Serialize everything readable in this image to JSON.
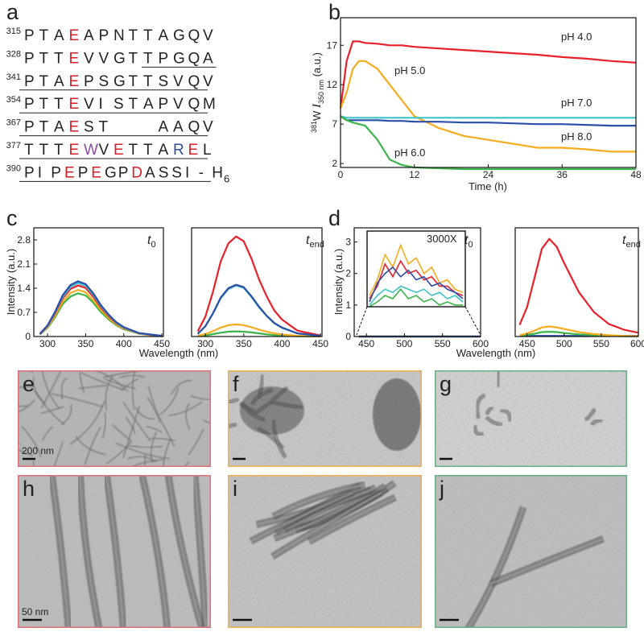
{
  "panel_labels": [
    "a",
    "b",
    "c",
    "d"
  ],
  "sequence": [
    {
      "number": "315",
      "segments": [
        {
          "text": "PTA"
        },
        {
          "text": "E",
          "color": "#d42027"
        },
        {
          "text": "APNTTAGQV"
        }
      ]
    },
    {
      "number": "328",
      "segments": [
        {
          "text": "PTT"
        },
        {
          "text": "E",
          "color": "#d42027"
        },
        {
          "text": "VVGTTPGQA"
        }
      ]
    },
    {
      "number": "341",
      "segments": [
        {
          "text": "PTA"
        },
        {
          "text": "E",
          "color": "#d42027"
        },
        {
          "text": "PSGTTSVQV"
        }
      ]
    },
    {
      "number": "354",
      "segments": [
        {
          "text": "PTT"
        },
        {
          "text": "E",
          "color": "#d42027"
        },
        {
          "text": "VISTAPVQM"
        }
      ]
    },
    {
      "number": "367",
      "segments": [
        {
          "text": "PTA"
        },
        {
          "text": "E",
          "color": "#d42027"
        },
        {
          "text": "ST   AAQV"
        }
      ]
    },
    {
      "number": "377",
      "segments": [
        {
          "text": "TTT"
        },
        {
          "text": "E",
          "color": "#d42027"
        },
        {
          "text": "W",
          "color": "#8a4fa0"
        },
        {
          "text": "V"
        },
        {
          "text": "E",
          "color": "#d42027"
        },
        {
          "text": "TTA"
        },
        {
          "text": "R",
          "color": "#2a4ea0"
        },
        {
          "text": "E",
          "color": "#d42027"
        },
        {
          "text": "L"
        }
      ]
    },
    {
      "number": "390",
      "segments": [
        {
          "text": "PIP"
        },
        {
          "text": "E",
          "color": "#d42027"
        },
        {
          "text": "P"
        },
        {
          "text": "E",
          "color": "#d42027"
        },
        {
          "text": "GP"
        },
        {
          "text": "D",
          "color": "#d42027"
        },
        {
          "text": "ASSI-H"
        }
      ],
      "subscript": "6"
    }
  ],
  "chart_data": [
    {
      "type": "line",
      "xlabel": "Time (h)",
      "ylabel": {
        "superscript": "381",
        "text": "W ",
        "italic": "I",
        "subscript": "350 nm",
        "suffix": " (a.u.)"
      },
      "x": [
        0,
        1,
        2,
        3,
        4,
        6,
        8,
        10,
        12,
        16,
        20,
        24,
        28,
        32,
        36,
        40,
        44,
        48
      ],
      "xlim": [
        0,
        48
      ],
      "xticks": [
        0,
        12,
        24,
        36,
        48
      ],
      "ylim": [
        1.5,
        20.5
      ],
      "yticks": [
        2,
        7,
        12,
        17
      ],
      "series": [
        {
          "name": "pH 4.0",
          "color": "#e8202a",
          "values": [
            9,
            15,
            17.5,
            17.5,
            17.3,
            17.2,
            17,
            17,
            16.8,
            16.6,
            16.4,
            16.2,
            16,
            15.8,
            15.5,
            15.3,
            15,
            14.8
          ]
        },
        {
          "name": "pH 5.0",
          "color": "#f7ac1f",
          "values": [
            9,
            11,
            14,
            15,
            15,
            14,
            12,
            10,
            8,
            6.5,
            5.5,
            5,
            4.5,
            4,
            4,
            3.8,
            3.5,
            3.5
          ]
        },
        {
          "name": "pH 7.0",
          "color": "#3cc3c8",
          "values": [
            8,
            7.8,
            7.8,
            7.8,
            7.8,
            7.8,
            7.8,
            7.8,
            7.8,
            7.8,
            7.8,
            7.8,
            7.8,
            7.8,
            7.8,
            7.8,
            7.8,
            7.8
          ]
        },
        {
          "name": "pH 8.0",
          "color": "#2b4fa8",
          "values": [
            8,
            7.5,
            7.5,
            7.5,
            7.5,
            7.5,
            7.4,
            7.4,
            7.3,
            7.3,
            7.2,
            7.2,
            7.1,
            7,
            7,
            6.9,
            6.8,
            6.8
          ]
        },
        {
          "name": "pH 6.0",
          "color": "#3bb449",
          "values": [
            8,
            7.5,
            7.2,
            7,
            6.8,
            5,
            2.5,
            1.8,
            1.5,
            1.4,
            1.3,
            1.3,
            1.3,
            1.3,
            1.3,
            1.3,
            1.3,
            1.3
          ]
        }
      ]
    },
    {
      "type": "line",
      "ylabel": "Intensity (a.u.)",
      "xlabel": "Wavelength (nm)",
      "annotation": {
        "text": "t",
        "subscript": "0"
      },
      "x": [
        290,
        300,
        310,
        320,
        330,
        340,
        350,
        360,
        370,
        380,
        390,
        400,
        420,
        450
      ],
      "xlim": [
        282,
        452
      ],
      "xticks": [
        300,
        350,
        400,
        450
      ],
      "ylim": [
        0,
        3.15
      ],
      "yticks": [
        0,
        0.7,
        1.4,
        2.1,
        2.8
      ],
      "series": [
        {
          "color": "#3bb449",
          "values": [
            0.06,
            0.25,
            0.56,
            0.94,
            1.16,
            1.25,
            1.19,
            0.98,
            0.71,
            0.5,
            0.33,
            0.21,
            0.08,
            0.01
          ]
        },
        {
          "color": "#f7ac1f",
          "values": [
            0.07,
            0.27,
            0.61,
            1.01,
            1.26,
            1.35,
            1.28,
            1.05,
            0.77,
            0.54,
            0.35,
            0.23,
            0.08,
            0.01
          ]
        },
        {
          "color": "#e8202a",
          "values": [
            0.07,
            0.3,
            0.67,
            1.11,
            1.38,
            1.48,
            1.41,
            1.15,
            0.84,
            0.59,
            0.38,
            0.25,
            0.09,
            0.01
          ]
        },
        {
          "color": "#3cc3c8",
          "values": [
            0.08,
            0.31,
            0.7,
            1.16,
            1.44,
            1.55,
            1.47,
            1.21,
            0.88,
            0.62,
            0.4,
            0.26,
            0.09,
            0.02
          ]
        },
        {
          "color": "#2b4fa8",
          "values": [
            0.08,
            0.32,
            0.72,
            1.2,
            1.49,
            1.6,
            1.52,
            1.25,
            0.91,
            0.64,
            0.42,
            0.27,
            0.1,
            0.02
          ]
        }
      ]
    },
    {
      "type": "line",
      "annotation": {
        "text": "t",
        "subscript": "end"
      },
      "x": [
        290,
        300,
        310,
        320,
        330,
        340,
        350,
        360,
        370,
        380,
        390,
        400,
        420,
        450
      ],
      "xlim": [
        282,
        452
      ],
      "xticks": [
        300,
        350,
        400,
        450
      ],
      "ylim": [
        0,
        3.15
      ],
      "series": [
        {
          "color": "#3bb449",
          "values": [
            0.01,
            0.03,
            0.07,
            0.11,
            0.14,
            0.15,
            0.14,
            0.12,
            0.09,
            0.06,
            0.04,
            0.03,
            0.01,
            0
          ]
        },
        {
          "color": "#f7ac1f",
          "values": [
            0.02,
            0.07,
            0.16,
            0.26,
            0.33,
            0.35,
            0.33,
            0.27,
            0.2,
            0.14,
            0.09,
            0.06,
            0.02,
            0
          ]
        },
        {
          "color": "#e8202a",
          "values": [
            0.15,
            0.58,
            1.31,
            2.18,
            2.7,
            2.9,
            2.76,
            2.26,
            1.65,
            1.16,
            0.75,
            0.49,
            0.17,
            0.03
          ]
        },
        {
          "color": "#3cc3c8",
          "values": [
            0.07,
            0.3,
            0.67,
            1.11,
            1.38,
            1.48,
            1.41,
            1.15,
            0.84,
            0.59,
            0.38,
            0.25,
            0.09,
            0.01
          ]
        },
        {
          "color": "#2b4fa8",
          "values": [
            0.08,
            0.3,
            0.68,
            1.13,
            1.4,
            1.5,
            1.43,
            1.17,
            0.86,
            0.6,
            0.39,
            0.26,
            0.09,
            0.02
          ]
        }
      ]
    },
    {
      "type": "line",
      "ylabel": "Intensity (a.u.)",
      "xlabel": "Wavelength (nm)",
      "annotation": {
        "text": "t",
        "subscript": "0"
      },
      "x": [
        440,
        460,
        480,
        500,
        520,
        540,
        560,
        580,
        600
      ],
      "xlim": [
        434,
        600
      ],
      "xticks": [
        450,
        500,
        550,
        600
      ],
      "ylim": [
        0,
        3.45
      ],
      "yticks": [
        0,
        1,
        2,
        3
      ],
      "series": [
        {
          "color": "#3bb449",
          "values": [
            0.0003,
            0.0004,
            0.0004,
            0.0004,
            0.0004,
            0.0003,
            0.0003,
            0.0003,
            0.0003
          ]
        },
        {
          "color": "#3cc3c8",
          "values": [
            0.0003,
            0.0005,
            0.0005,
            0.0005,
            0.0004,
            0.0004,
            0.0004,
            0.0003,
            0.0003
          ]
        },
        {
          "color": "#e8202a",
          "values": [
            0.0004,
            0.0006,
            0.0007,
            0.0007,
            0.0006,
            0.0005,
            0.0004,
            0.0004,
            0.0003
          ]
        },
        {
          "color": "#f7ac1f",
          "values": [
            0.0004,
            0.0007,
            0.0009,
            0.0008,
            0.0007,
            0.0006,
            0.0005,
            0.0004,
            0.0004
          ]
        },
        {
          "color": "#2b4fa8",
          "values": [
            0.0004,
            0.0006,
            0.0007,
            0.0007,
            0.0006,
            0.0005,
            0.0005,
            0.0004,
            0.0004
          ]
        }
      ],
      "inset": {
        "label": "3000X",
        "x": [
          440,
          450,
          460,
          470,
          480,
          490,
          500,
          510,
          520,
          530,
          540,
          550,
          560
        ],
        "series": [
          {
            "color": "#f7ac1f",
            "values": [
              1.3,
              1.8,
              2.6,
              2.2,
              2.9,
              2.3,
              2.5,
              2,
              2.2,
              1.7,
              1.8,
              1.5,
              1.4
            ]
          },
          {
            "color": "#e8202a",
            "values": [
              1.2,
              1.6,
              2.3,
              1.9,
              2.4,
              2,
              2.1,
              1.8,
              1.9,
              1.6,
              1.6,
              1.4,
              1.3
            ]
          },
          {
            "color": "#2b4fa8",
            "values": [
              1.1,
              1.7,
              2,
              2.2,
              1.9,
              2.1,
              1.8,
              1.9,
              1.6,
              1.7,
              1.5,
              1.4,
              1.2
            ]
          },
          {
            "color": "#3cc3c8",
            "values": [
              1,
              1.3,
              1.5,
              1.4,
              1.6,
              1.5,
              1.4,
              1.5,
              1.3,
              1.4,
              1.2,
              1.3,
              1.1
            ]
          },
          {
            "color": "#3bb449",
            "values": [
              0.95,
              1.1,
              1.3,
              1.2,
              1.5,
              1.2,
              1.3,
              1.1,
              1.2,
              1,
              1.1,
              1,
              1
            ]
          }
        ]
      }
    },
    {
      "type": "line",
      "annotation": {
        "text": "t",
        "subscript": "end"
      },
      "x": [
        440,
        450,
        460,
        470,
        480,
        490,
        500,
        520,
        540,
        560,
        580,
        600
      ],
      "xlim": [
        434,
        600
      ],
      "xticks": [
        450,
        500,
        550,
        600
      ],
      "ylim": [
        0,
        3.45
      ],
      "series": [
        {
          "color": "#2b4fa8",
          "values": [
            0.02,
            0.02,
            0.02,
            0.02,
            0.02,
            0.02,
            0.02,
            0.02,
            0.02,
            0.02,
            0.02,
            0.02
          ]
        },
        {
          "color": "#3bb449",
          "values": [
            0.02,
            0.05,
            0.09,
            0.14,
            0.15,
            0.14,
            0.11,
            0.07,
            0.04,
            0.02,
            0.01,
            0.01
          ]
        },
        {
          "color": "#f7ac1f",
          "values": [
            0.04,
            0.1,
            0.19,
            0.29,
            0.32,
            0.29,
            0.24,
            0.14,
            0.08,
            0.04,
            0.02,
            0.01
          ]
        },
        {
          "color": "#e8202a",
          "values": [
            0.37,
            0.93,
            1.86,
            2.79,
            3.1,
            2.85,
            2.33,
            1.4,
            0.78,
            0.4,
            0.22,
            0.12
          ]
        }
      ]
    }
  ],
  "micrographs": [
    {
      "label": "e",
      "border": "#e0707a",
      "scale_bar": "200 nm"
    },
    {
      "label": "f",
      "border": "#f0b050"
    },
    {
      "label": "g",
      "border": "#6ab080"
    },
    {
      "label": "h",
      "border": "#e0707a",
      "scale_bar": "50 nm"
    },
    {
      "label": "i",
      "border": "#f0b050"
    },
    {
      "label": "j",
      "border": "#6ab080"
    }
  ]
}
